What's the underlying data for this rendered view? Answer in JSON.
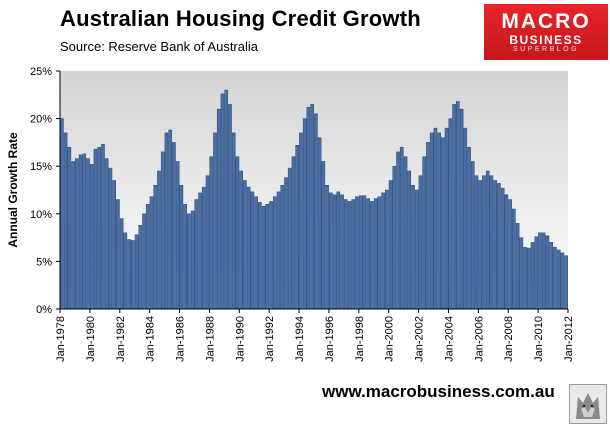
{
  "header": {
    "title": "Australian  Housing Credit Growth",
    "subtitle": "Source: Reserve Bank of Australia"
  },
  "logo": {
    "line1": "MACRO",
    "line2": "BUSINESS",
    "line3": "SUPERBLOG"
  },
  "footer": {
    "url": "www.macrobusiness.com.au"
  },
  "colors": {
    "bar": "#4a6fa5",
    "bar_edge": "#2c4a78",
    "plot_bg_top": "#d4d4d4",
    "plot_bg_bottom": "#ffffff",
    "logo_red": "#d71920"
  },
  "chart_data": {
    "type": "bar",
    "ylabel": "Annual Growth Rate",
    "xlabel": "",
    "ylim": [
      0,
      25
    ],
    "yticks": [
      0,
      5,
      10,
      15,
      20,
      25
    ],
    "ytick_labels": [
      "0%",
      "5%",
      "10%",
      "15%",
      "20%",
      "25%"
    ],
    "x_start": "Jan-1978",
    "x_end": "Jan-2012",
    "x_tick_labels": [
      "Jan-1978",
      "Jan-1980",
      "Jan-1982",
      "Jan-1984",
      "Jan-1986",
      "Jan-1988",
      "Jan-1990",
      "Jan-1992",
      "Jan-1994",
      "Jan-1996",
      "Jan-1998",
      "Jan-2000",
      "Jan-2002",
      "Jan-2004",
      "Jan-2006",
      "Jan-2008",
      "Jan-2010",
      "Jan-2012"
    ],
    "grid": false,
    "legend": "none",
    "series": [
      {
        "frequency": "quarterly",
        "dates": [
          "1978-Q1",
          "1978-Q2",
          "1978-Q3",
          "1978-Q4",
          "1979-Q1",
          "1979-Q2",
          "1979-Q3",
          "1979-Q4",
          "1980-Q1",
          "1980-Q2",
          "1980-Q3",
          "1980-Q4",
          "1981-Q1",
          "1981-Q2",
          "1981-Q3",
          "1981-Q4",
          "1982-Q1",
          "1982-Q2",
          "1982-Q3",
          "1982-Q4",
          "1983-Q1",
          "1983-Q2",
          "1983-Q3",
          "1983-Q4",
          "1984-Q1",
          "1984-Q2",
          "1984-Q3",
          "1984-Q4",
          "1985-Q1",
          "1985-Q2",
          "1985-Q3",
          "1985-Q4",
          "1986-Q1",
          "1986-Q2",
          "1986-Q3",
          "1986-Q4",
          "1987-Q1",
          "1987-Q2",
          "1987-Q3",
          "1987-Q4",
          "1988-Q1",
          "1988-Q2",
          "1988-Q3",
          "1988-Q4",
          "1989-Q1",
          "1989-Q2",
          "1989-Q3",
          "1989-Q4",
          "1990-Q1",
          "1990-Q2",
          "1990-Q3",
          "1990-Q4",
          "1991-Q1",
          "1991-Q2",
          "1991-Q3",
          "1991-Q4",
          "1992-Q1",
          "1992-Q2",
          "1992-Q3",
          "1992-Q4",
          "1993-Q1",
          "1993-Q2",
          "1993-Q3",
          "1993-Q4",
          "1994-Q1",
          "1994-Q2",
          "1994-Q3",
          "1994-Q4",
          "1995-Q1",
          "1995-Q2",
          "1995-Q3",
          "1995-Q4",
          "1996-Q1",
          "1996-Q2",
          "1996-Q3",
          "1996-Q4",
          "1997-Q1",
          "1997-Q2",
          "1997-Q3",
          "1997-Q4",
          "1998-Q1",
          "1998-Q2",
          "1998-Q3",
          "1998-Q4",
          "1999-Q1",
          "1999-Q2",
          "1999-Q3",
          "1999-Q4",
          "2000-Q1",
          "2000-Q2",
          "2000-Q3",
          "2000-Q4",
          "2001-Q1",
          "2001-Q2",
          "2001-Q3",
          "2001-Q4",
          "2002-Q1",
          "2002-Q2",
          "2002-Q3",
          "2002-Q4",
          "2003-Q1",
          "2003-Q2",
          "2003-Q3",
          "2003-Q4",
          "2004-Q1",
          "2004-Q2",
          "2004-Q3",
          "2004-Q4",
          "2005-Q1",
          "2005-Q2",
          "2005-Q3",
          "2005-Q4",
          "2006-Q1",
          "2006-Q2",
          "2006-Q3",
          "2006-Q4",
          "2007-Q1",
          "2007-Q2",
          "2007-Q3",
          "2007-Q4",
          "2008-Q1",
          "2008-Q2",
          "2008-Q3",
          "2008-Q4",
          "2009-Q1",
          "2009-Q2",
          "2009-Q3",
          "2009-Q4",
          "2010-Q1",
          "2010-Q2",
          "2010-Q3",
          "2010-Q4",
          "2011-Q1",
          "2011-Q2",
          "2011-Q3",
          "2011-Q4"
        ],
        "values": [
          20,
          18.5,
          17,
          15.5,
          15.8,
          16.2,
          16.3,
          15.8,
          15.2,
          16.8,
          17,
          17.3,
          15.8,
          14.8,
          13.5,
          11.5,
          9.5,
          8,
          7.3,
          7.2,
          7.8,
          8.8,
          10,
          11,
          11.8,
          13,
          14.5,
          16.5,
          18.5,
          18.8,
          17.5,
          15.5,
          13,
          11,
          10,
          10.3,
          11.5,
          12.2,
          12.8,
          14,
          16,
          18.5,
          21,
          22.6,
          23,
          21.5,
          18.5,
          16,
          14.5,
          13.5,
          12.8,
          12.3,
          11.8,
          11.2,
          10.8,
          11,
          11.3,
          11.8,
          12.3,
          13,
          13.8,
          14.8,
          16,
          17.2,
          18.5,
          20,
          21.2,
          21.5,
          20.5,
          18,
          15.5,
          13,
          12.2,
          12,
          12.3,
          12,
          11.5,
          11.3,
          11.5,
          11.8,
          11.9,
          11.9,
          11.6,
          11.3,
          11.6,
          11.8,
          12.2,
          12.5,
          13.5,
          15,
          16.5,
          17,
          16,
          14.5,
          13,
          12.5,
          14,
          16,
          17.5,
          18.5,
          19,
          18.5,
          18,
          19,
          20,
          21.5,
          21.8,
          21,
          19,
          17,
          15.5,
          14,
          13.5,
          14,
          14.5,
          14,
          13.5,
          13.2,
          12.7,
          12,
          11.5,
          10.5,
          9,
          7.5,
          6.5,
          6.4,
          7,
          7.6,
          8,
          8,
          7.7,
          7,
          6.5,
          6.2,
          5.9,
          5.6
        ]
      }
    ]
  }
}
